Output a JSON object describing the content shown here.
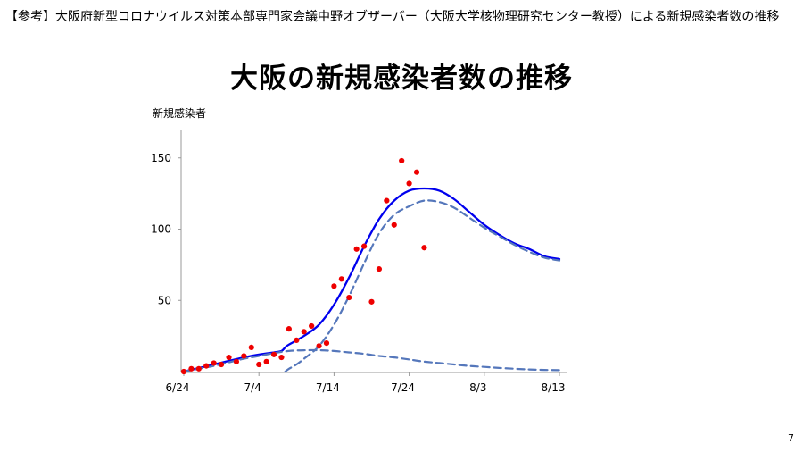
{
  "slide": {
    "header": "【参考】大阪府新型コロナウイルス対策本部専門家会議中野オブザーバー（大阪大学核物理研究センター教授）による新規感染者数の推移",
    "page_number": "7"
  },
  "chart_data": {
    "type": "scatter",
    "title": "大阪の新規感染者数の推移",
    "ylabel": "新規感染者",
    "xlabel": "",
    "x_ticks": [
      "6/24",
      "7/4",
      "7/14",
      "7/24",
      "8/3",
      "8/13"
    ],
    "x_tick_days": [
      0,
      10,
      20,
      30,
      40,
      50
    ],
    "y_ticks": [
      50,
      100,
      150
    ],
    "xlim": [
      0,
      51
    ],
    "ylim": [
      0,
      170
    ],
    "grid": false,
    "colors": {
      "points": "#ee0000",
      "solid_line": "#0000ee",
      "dashed_line": "#5577bb"
    },
    "series": [
      {
        "kind": "points",
        "x": [
          0,
          1,
          2,
          3,
          4,
          5,
          6,
          7,
          8,
          9,
          10,
          11,
          12,
          13,
          14,
          15,
          16,
          17,
          18,
          19,
          20,
          21,
          22,
          23,
          24,
          25,
          26,
          27,
          28,
          29,
          30,
          31,
          32,
          33
        ],
        "y": [
          0,
          2,
          2,
          4,
          6,
          5,
          10,
          7,
          11,
          17,
          5,
          7,
          12,
          10,
          30,
          22,
          28,
          32,
          18,
          20,
          60,
          65,
          52,
          86,
          88,
          49,
          72,
          120,
          103,
          148,
          132,
          140,
          87,
          null
        ]
      },
      {
        "kind": "solid",
        "x": [
          0,
          2,
          4,
          6,
          8,
          10,
          12,
          13,
          13.5,
          14,
          16,
          18,
          20,
          22,
          24,
          26,
          28,
          30,
          32,
          34,
          36,
          38,
          40,
          42,
          44,
          46,
          48,
          50
        ],
        "y": [
          0,
          2.5,
          5,
          7.5,
          10,
          12,
          13.5,
          14.5,
          17,
          19,
          25,
          33,
          47,
          66,
          88,
          107,
          120,
          127,
          128.5,
          127,
          121,
          112,
          103,
          96,
          90,
          86,
          81,
          79
        ]
      },
      {
        "kind": "dashed",
        "x": [
          0,
          2,
          4,
          6,
          8,
          10,
          12,
          14,
          16,
          18,
          20,
          22,
          24,
          26,
          28,
          30,
          32,
          34,
          36,
          38,
          40,
          42,
          44,
          46,
          48,
          50
        ],
        "y": [
          0,
          2,
          4,
          6.5,
          9,
          11,
          13,
          14.5,
          15,
          15,
          14.5,
          13.5,
          12.5,
          11,
          10,
          8.5,
          7,
          6,
          5,
          4,
          3.3,
          2.6,
          2,
          1.5,
          1.2,
          1
        ]
      },
      {
        "kind": "dashed",
        "x": [
          13.5,
          14,
          15,
          16,
          18,
          20,
          22,
          24,
          26,
          28,
          30,
          32,
          34,
          36,
          38,
          40,
          42,
          44,
          46,
          48,
          50
        ],
        "y": [
          0,
          2,
          5,
          9,
          18,
          33,
          53,
          76,
          97,
          110,
          116,
          120,
          119,
          115,
          108,
          101,
          95,
          89,
          84,
          80,
          78
        ]
      }
    ]
  }
}
